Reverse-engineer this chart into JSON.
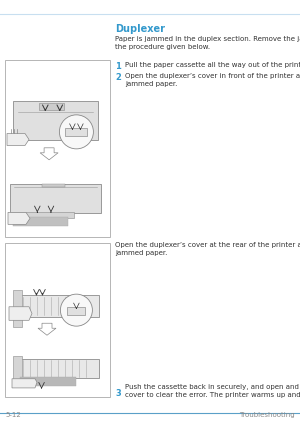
{
  "page_bg": "#ffffff",
  "top_line_color": "#c8dff0",
  "bottom_line_color": "#5aa0c8",
  "title": "Duplexer",
  "title_color": "#3399cc",
  "title_fontsize": 7.0,
  "intro_text": "Paper is jammed in the duplex section. Remove the jammed paper using\nthe procedure given below.",
  "intro_fontsize": 5.0,
  "step1_num": "1",
  "step1_text": "Pull the paper cassette all the way out of the printer.",
  "step2_num": "2",
  "step2_text": "Open the duplexer’s cover in front of the printer and remove any\njammed paper.",
  "mid_text": "Open the duplexer’s cover at the rear of the printer and remove any\njammed paper.",
  "step3_num": "3",
  "step3_text": "Push the cassette back in securely, and open and close the top\ncover to clear the error. The printer warms up and resumes printing.",
  "step_fontsize": 5.0,
  "step_num_fontsize": 6.0,
  "step_num_color": "#3399cc",
  "text_color": "#333333",
  "box_edge_color": "#aaaaaa",
  "box_fill": "#ffffff",
  "footer_left": "5-12",
  "footer_right": "Troubleshooting",
  "footer_color": "#888888",
  "footer_fontsize": 5.0
}
